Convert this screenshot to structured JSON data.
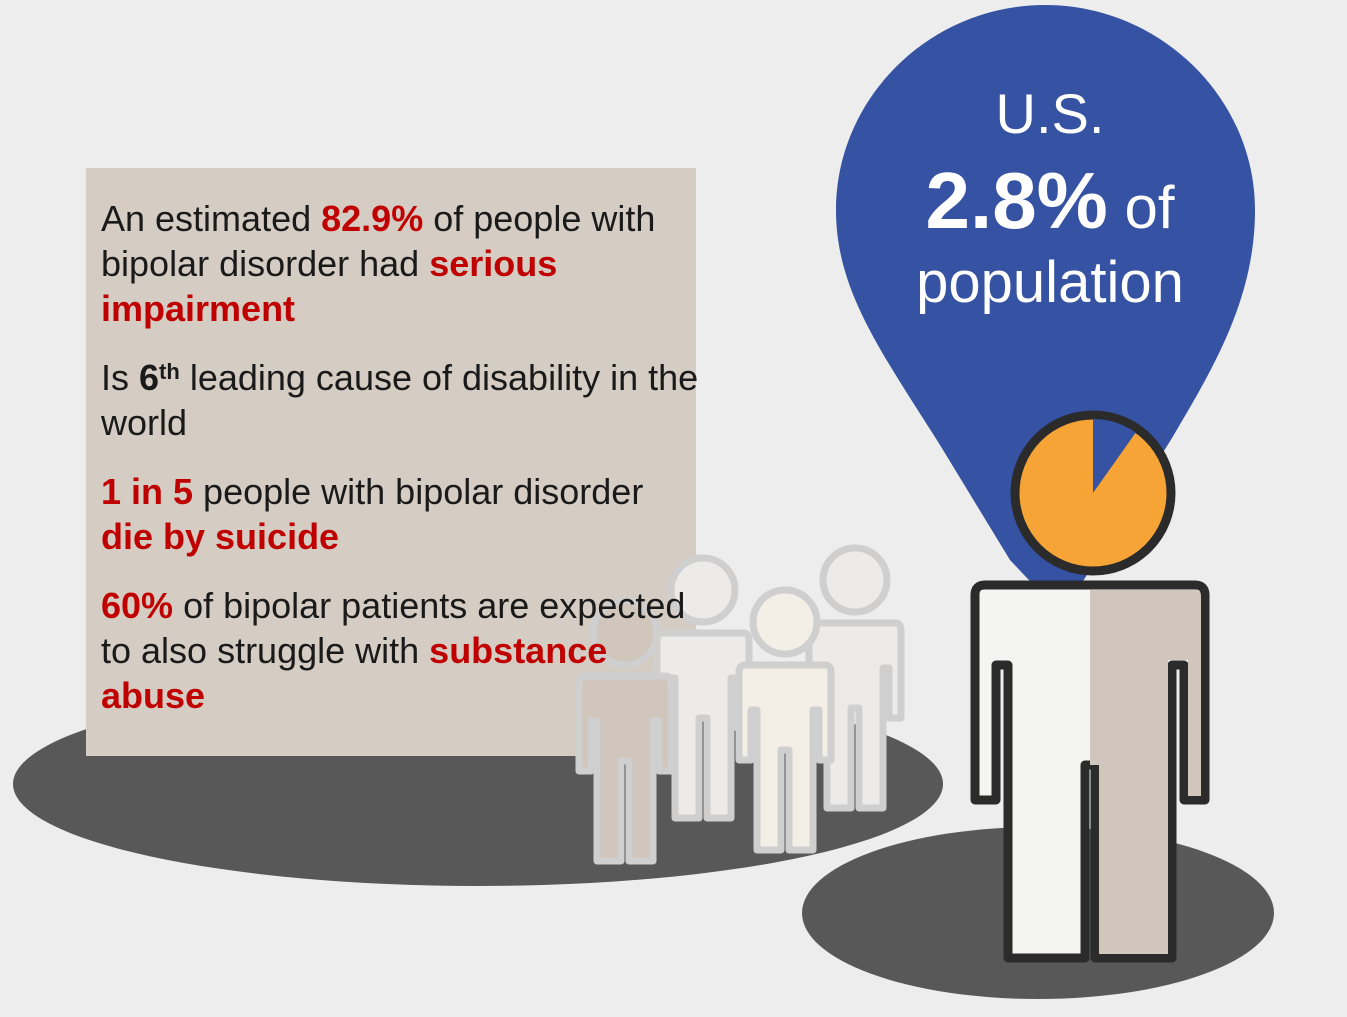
{
  "infobox": {
    "stat1": {
      "pre": "An estimated ",
      "highlight": "82.9%",
      "mid": " of people with bipolar disorder had ",
      "emphasis": "serious impairment"
    },
    "stat2": {
      "pre": "Is ",
      "rank": "6",
      "rank_suffix": "th",
      "post": " leading cause of disability in the world"
    },
    "stat3": {
      "highlight": "1 in 5",
      "mid": " people with bipolar disorder ",
      "emphasis": "die by suicide"
    },
    "stat4": {
      "highlight": "60%",
      "mid": " of bipolar patients are expected to also struggle with ",
      "emphasis": "substance abuse"
    }
  },
  "pin": {
    "region": "U.S.",
    "percent": "2.8%",
    "of": " of",
    "population": "population",
    "pie_fraction": 0.028
  },
  "colors": {
    "highlight_red": "#c00000",
    "pin_blue": "#3552a3",
    "pie_orange": "#f7a436",
    "box_beige": "#d5ccc3",
    "ground_gray": "#585858"
  },
  "icons": [
    "crowd-person-icon",
    "featured-person-icon",
    "location-pin-icon",
    "pie-chart-icon"
  ]
}
